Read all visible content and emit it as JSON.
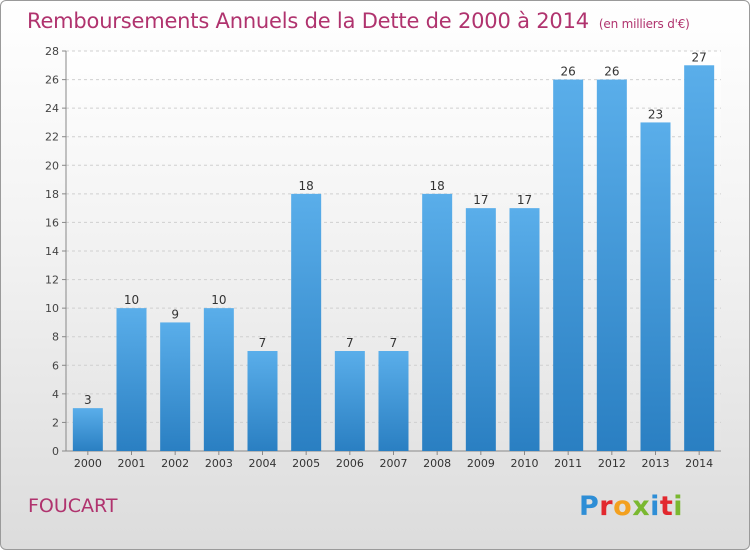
{
  "title": "Remboursements Annuels de la Dette de 2000 à 2014",
  "unit": "(en milliers d'€)",
  "commune": "FOUCART",
  "logo": {
    "letters": [
      "P",
      "r",
      "o",
      "x",
      "i",
      "t",
      "i"
    ],
    "colors": [
      "#2e8ed6",
      "#e2282e",
      "#f3a01f",
      "#7ab830",
      "#2e8ed6",
      "#e2282e",
      "#7ab830"
    ]
  },
  "colors": {
    "title": "#b0336e",
    "bar_top": "#5aaeea",
    "bar_bottom": "#2a7fc2"
  },
  "chart_data": {
    "type": "bar",
    "title": "Remboursements Annuels de la Dette de 2000 à 2014",
    "categories": [
      "2000",
      "2001",
      "2002",
      "2003",
      "2004",
      "2005",
      "2006",
      "2007",
      "2008",
      "2009",
      "2010",
      "2011",
      "2012",
      "2013",
      "2014"
    ],
    "values": [
      3,
      10,
      9,
      10,
      7,
      18,
      7,
      7,
      18,
      17,
      17,
      26,
      26,
      23,
      27
    ],
    "ylim": [
      0,
      28
    ],
    "yticks": [
      0,
      2,
      4,
      6,
      8,
      10,
      12,
      14,
      16,
      18,
      20,
      22,
      24,
      26,
      28
    ],
    "grid": true,
    "data_labels": true
  }
}
